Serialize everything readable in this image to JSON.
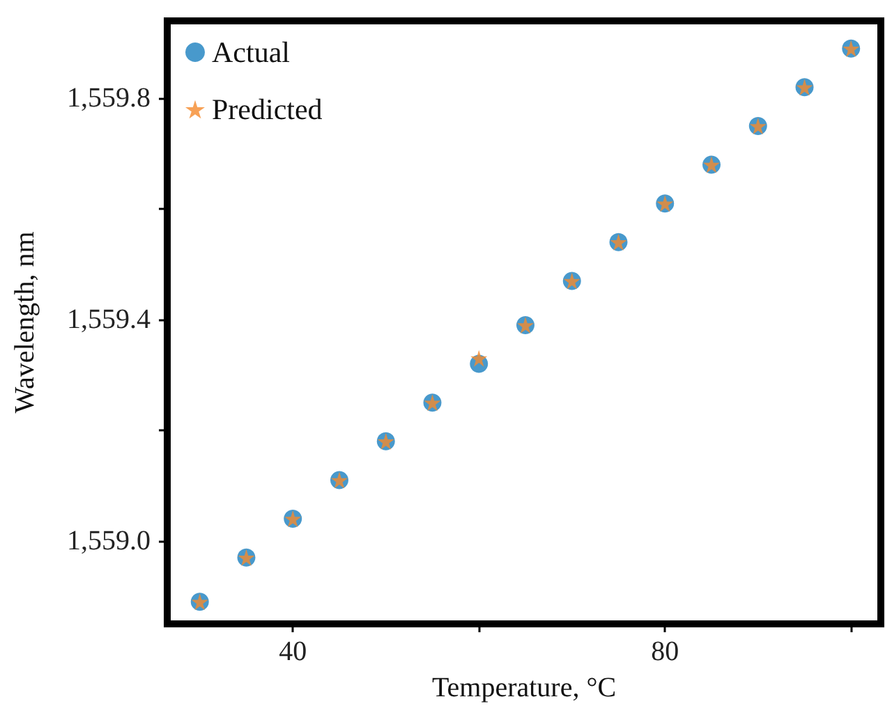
{
  "chart_data": {
    "type": "scatter",
    "xlabel": "Temperature, °C",
    "ylabel": "Wavelength, nm",
    "x": [
      30,
      35,
      40,
      45,
      50,
      55,
      60,
      65,
      70,
      75,
      80,
      85,
      90,
      95,
      100
    ],
    "series": [
      {
        "name": "Actual",
        "color": "#1a7fbf",
        "marker": "circle",
        "values": [
          1558.89,
          1558.97,
          1559.04,
          1559.11,
          1559.18,
          1559.25,
          1559.32,
          1559.39,
          1559.47,
          1559.54,
          1559.61,
          1559.68,
          1559.75,
          1559.82,
          1559.89
        ]
      },
      {
        "name": "Predicted",
        "color": "#f58a2c",
        "marker": "star",
        "values": [
          1558.89,
          1558.97,
          1559.04,
          1559.11,
          1559.18,
          1559.25,
          1559.33,
          1559.39,
          1559.47,
          1559.54,
          1559.61,
          1559.68,
          1559.75,
          1559.82,
          1559.89
        ]
      }
    ],
    "xlim": [
      26.5,
      103.2
    ],
    "ylim": [
      1558.85,
      1559.94
    ],
    "xticks": [
      40,
      {
        "value": 60,
        "label": null
      },
      80,
      {
        "value": 100,
        "label": null
      }
    ],
    "yticks": [
      {
        "value": 1559.0,
        "label": "1,559.0"
      },
      {
        "value": 1559.2,
        "label": null
      },
      {
        "value": 1559.4,
        "label": "1,559.4"
      },
      {
        "value": 1559.6,
        "label": null
      },
      {
        "value": 1559.8,
        "label": "1,559.8"
      }
    ],
    "grid": false,
    "legend": "top left"
  }
}
